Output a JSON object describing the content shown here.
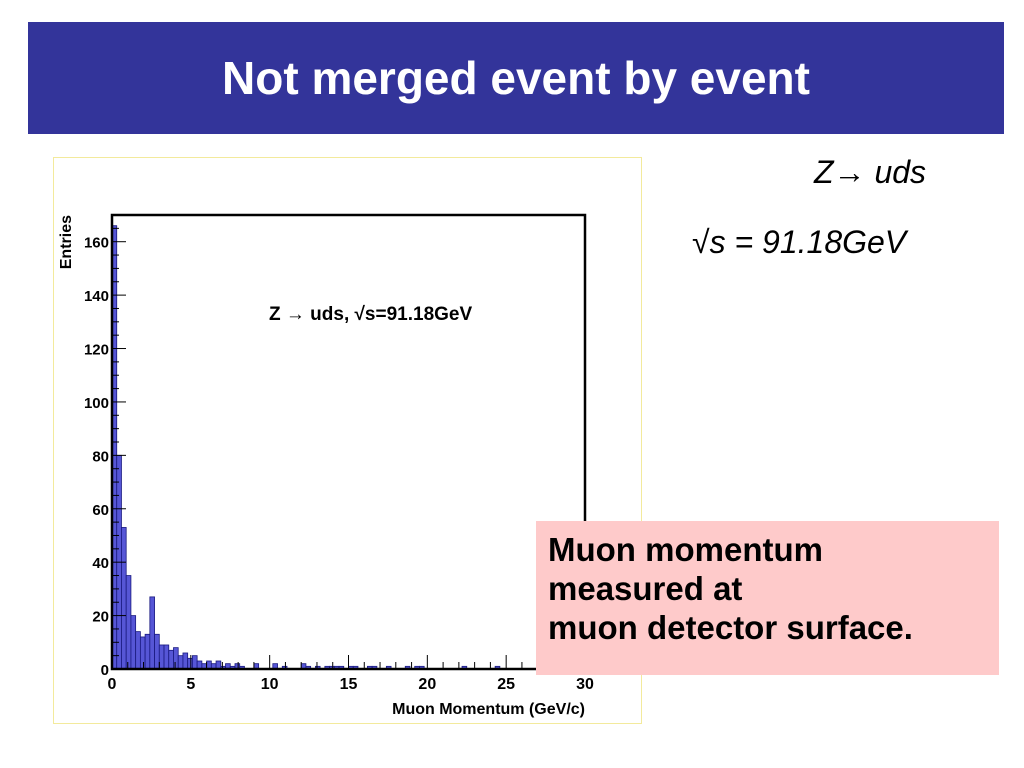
{
  "slide": {
    "title": "Not merged event by event",
    "side_line1": "Z→ uds",
    "side_line2": "√s = 91.18GeV",
    "callout_lines": [
      "Muon momentum",
      "measured at",
      "muon detector surface."
    ]
  },
  "colors": {
    "title_bar": "#33349a",
    "bar_fill": "#5656d6",
    "callout_bg": "#fecaca"
  },
  "chart_data": {
    "type": "bar",
    "title": "",
    "annotation": "Z → uds, √s=91.18GeV",
    "xlabel": "Muon Momentum (GeV/c)",
    "ylabel": "Entries",
    "xlim": [
      0,
      30
    ],
    "ylim": [
      0,
      170
    ],
    "bin_width": 0.3,
    "x_ticks": [
      "0",
      "5",
      "10",
      "15",
      "20",
      "25",
      "30"
    ],
    "y_ticks": [
      "0",
      "20",
      "40",
      "60",
      "80",
      "100",
      "120",
      "140",
      "160"
    ],
    "series": [
      {
        "values": [
          166,
          80,
          53,
          35,
          20,
          14,
          12,
          13,
          27,
          13,
          9,
          9,
          7,
          8,
          5,
          6,
          4,
          5,
          3,
          2,
          3,
          2,
          3,
          1,
          2,
          1,
          2,
          1,
          0,
          0,
          2,
          0,
          0,
          0,
          2,
          0,
          1,
          0,
          0,
          0,
          2,
          1,
          0,
          1,
          0,
          1,
          1,
          1,
          1,
          0,
          1,
          1,
          0,
          0,
          1,
          1,
          0,
          0,
          1,
          0,
          0,
          0,
          1,
          0,
          1,
          1,
          0,
          0,
          0,
          0,
          0,
          0,
          0,
          0,
          1,
          0,
          0,
          0,
          0,
          0,
          0,
          1,
          0,
          0,
          0,
          0,
          0,
          0,
          0,
          0,
          0,
          0,
          0,
          0,
          1,
          0,
          0,
          0,
          0,
          0
        ]
      }
    ]
  }
}
